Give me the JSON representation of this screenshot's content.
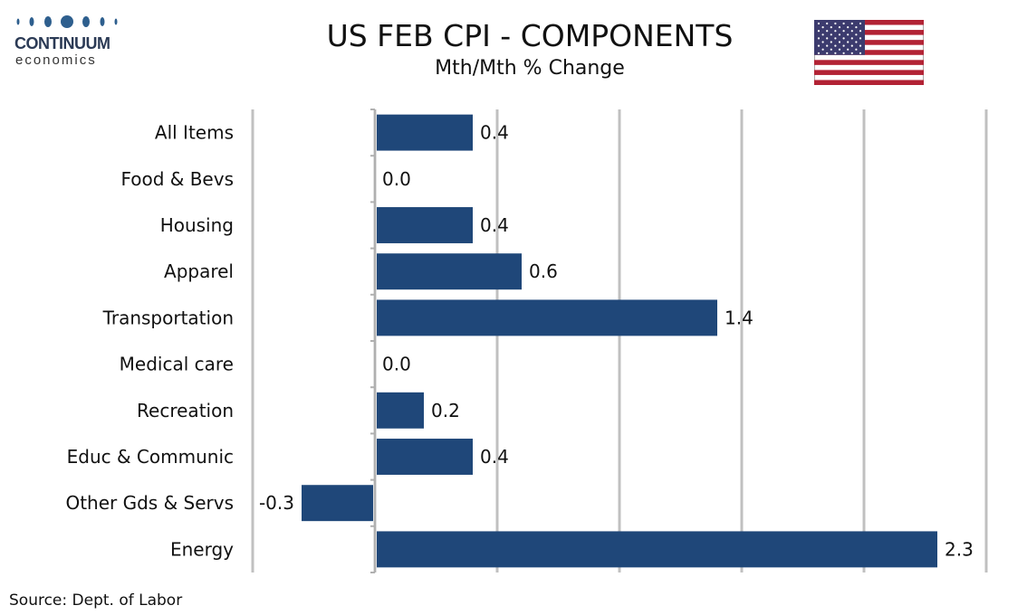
{
  "brand": {
    "name": "CONTINUUM",
    "tagline": "economics"
  },
  "title": "US FEB CPI - COMPONENTS",
  "subtitle": "Mth/Mth % Change",
  "source": "Source: Dept. of Labor",
  "colors": {
    "bar": "#1f4779",
    "grid": "#c0c0c0",
    "brand": "#2e5f8e"
  },
  "icons": {
    "logo": "continuum-dots-logo",
    "flag": "us-flag-icon"
  },
  "chart_data": {
    "type": "bar",
    "orientation": "horizontal",
    "categories": [
      "All Items",
      "Food & Bevs",
      "Housing",
      "Apparel ",
      "Transportation",
      "Medical care",
      "Recreation",
      "Educ & Communic",
      "Other Gds & Servs",
      "Energy"
    ],
    "values": [
      0.4,
      0.0,
      0.4,
      0.6,
      1.4,
      0.0,
      0.2,
      0.4,
      -0.3,
      2.3
    ],
    "value_labels": [
      "0.4",
      "0.0",
      "0.4",
      "0.6",
      "1.4",
      "0.0",
      "0.2",
      "0.4",
      "-0.3",
      "2.3"
    ],
    "xlim": [
      -0.5,
      2.5
    ],
    "x_gridlines": [
      -0.5,
      0.0,
      0.5,
      1.0,
      1.5,
      2.0,
      2.5
    ],
    "x_tick_labels_shown": false,
    "grid": true,
    "legend": "none",
    "title": "US FEB CPI - COMPONENTS",
    "xlabel": "",
    "ylabel": ""
  }
}
